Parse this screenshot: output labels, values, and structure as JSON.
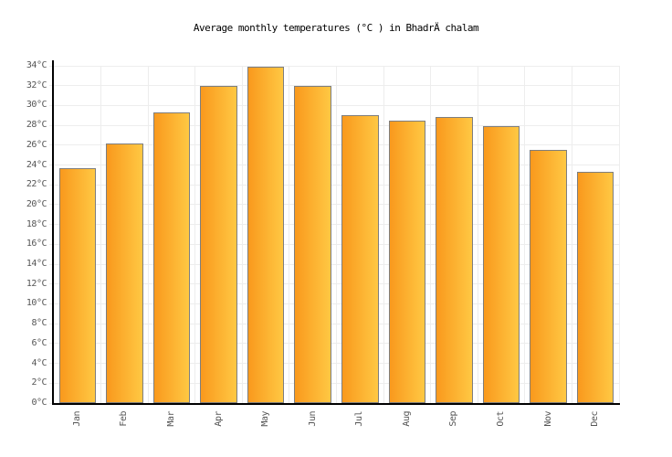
{
  "chart_data": {
    "type": "bar",
    "title": "Average monthly temperatures (°C ) in BhadrÄ chalam",
    "categories": [
      "Jan",
      "Feb",
      "Mar",
      "Apr",
      "May",
      "Jun",
      "Jul",
      "Aug",
      "Sep",
      "Oct",
      "Nov",
      "Dec"
    ],
    "values": [
      23.7,
      26.2,
      29.3,
      32.0,
      33.9,
      32.0,
      29.0,
      28.5,
      28.8,
      27.9,
      25.5,
      23.3
    ],
    "unit": "°C",
    "xlabel": "",
    "ylabel": "",
    "ylim": [
      0,
      34
    ],
    "ytick_step": 2,
    "ytick_suffix": "°C",
    "grid": "on",
    "legend": "none",
    "colors": {
      "bar_gradient_start": "#F9991D",
      "bar_gradient_end": "#FFC843",
      "bar_border": "#7E7E7E",
      "gridline": "#EDEDED",
      "axis": "#000000",
      "label": "#555555",
      "title": "#000000",
      "background": "#FFFFFF"
    }
  }
}
